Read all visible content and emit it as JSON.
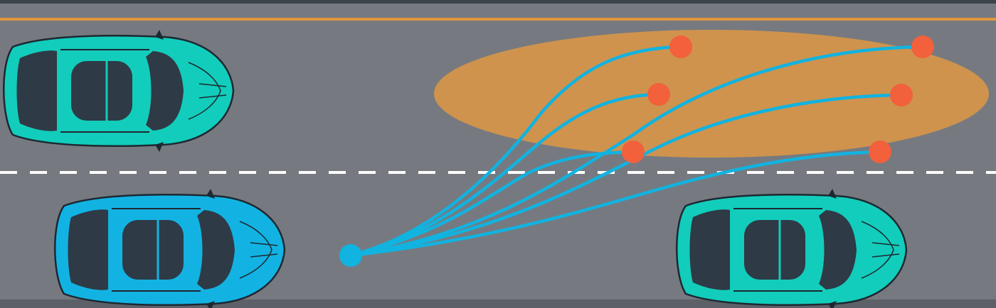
{
  "scene": {
    "road_color": "#767a80",
    "road_edge_color": "#3b434b",
    "edge_line_color": "#e0963d",
    "lane_divider_color": "#ffffff",
    "target_region_color": "#d4954a",
    "trajectory_color": "#11b3e0",
    "endpoint_color": "#f2603c",
    "origin_color": "#11b3e0"
  },
  "vehicles": [
    {
      "id": "car-left-top",
      "role": "other-vehicle",
      "body_color": "#12cdbb",
      "cabin_color": "#2e3a46"
    },
    {
      "id": "car-ego",
      "role": "ego-vehicle",
      "body_color": "#12b3e3",
      "cabin_color": "#2e3a46"
    },
    {
      "id": "car-right-bottom",
      "role": "other-vehicle",
      "body_color": "#12cdbb",
      "cabin_color": "#2e3a46"
    }
  ],
  "trajectories": [
    {
      "id": "path-1",
      "goal": "top-near"
    },
    {
      "id": "path-2",
      "goal": "mid-near"
    },
    {
      "id": "path-3",
      "goal": "low-near"
    },
    {
      "id": "path-4",
      "goal": "top-far"
    },
    {
      "id": "path-5",
      "goal": "mid-far"
    },
    {
      "id": "path-6",
      "goal": "low-far"
    }
  ]
}
